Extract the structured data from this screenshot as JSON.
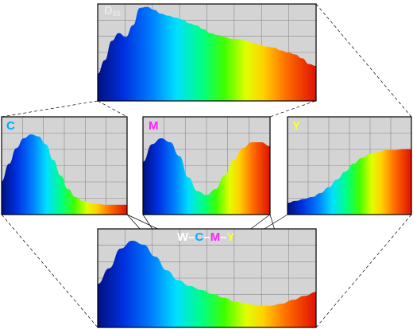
{
  "labels": {
    "d65_main": "D",
    "d65_sub": "65",
    "c": "C",
    "m": "M",
    "y": "Y",
    "mix_w": "W",
    "mix_c": "C",
    "mix_m": "M",
    "mix_y": "Y",
    "mix_dash": "–"
  },
  "colors": {
    "d65_label": "#e8e8e8",
    "c_label": "#00aaff",
    "m_label": "#ff22ff",
    "y_label": "#ffff22",
    "w_label": "#ffffff",
    "grid_bg": "#d4d4d4",
    "grid_line": "#888888"
  },
  "spectra": {
    "d65": [
      0.28,
      0.42,
      0.62,
      0.7,
      0.66,
      0.78,
      0.96,
      0.97,
      0.94,
      0.9,
      0.88,
      0.86,
      0.84,
      0.8,
      0.78,
      0.74,
      0.7,
      0.68,
      0.66,
      0.64,
      0.64,
      0.62,
      0.6,
      0.58,
      0.56,
      0.55,
      0.52,
      0.5,
      0.48,
      0.44,
      0.38,
      0.36
    ],
    "c": [
      0.34,
      0.52,
      0.68,
      0.78,
      0.82,
      0.8,
      0.72,
      0.56,
      0.4,
      0.26,
      0.18,
      0.14,
      0.12,
      0.11,
      0.1,
      0.1,
      0.1,
      0.1
    ],
    "m": [
      0.54,
      0.72,
      0.78,
      0.74,
      0.6,
      0.38,
      0.24,
      0.2,
      0.26,
      0.4,
      0.56,
      0.68,
      0.74,
      0.74,
      0.7
    ],
    "y": [
      0.12,
      0.14,
      0.16,
      0.18,
      0.22,
      0.28,
      0.36,
      0.44,
      0.52,
      0.58,
      0.62,
      0.64,
      0.66,
      0.66,
      0.67,
      0.67
    ],
    "wcmy": [
      0.44,
      0.6,
      0.8,
      0.88,
      0.84,
      0.72,
      0.58,
      0.48,
      0.42,
      0.38,
      0.34,
      0.3,
      0.26,
      0.24,
      0.22,
      0.22,
      0.24,
      0.28,
      0.32,
      0.36
    ]
  }
}
